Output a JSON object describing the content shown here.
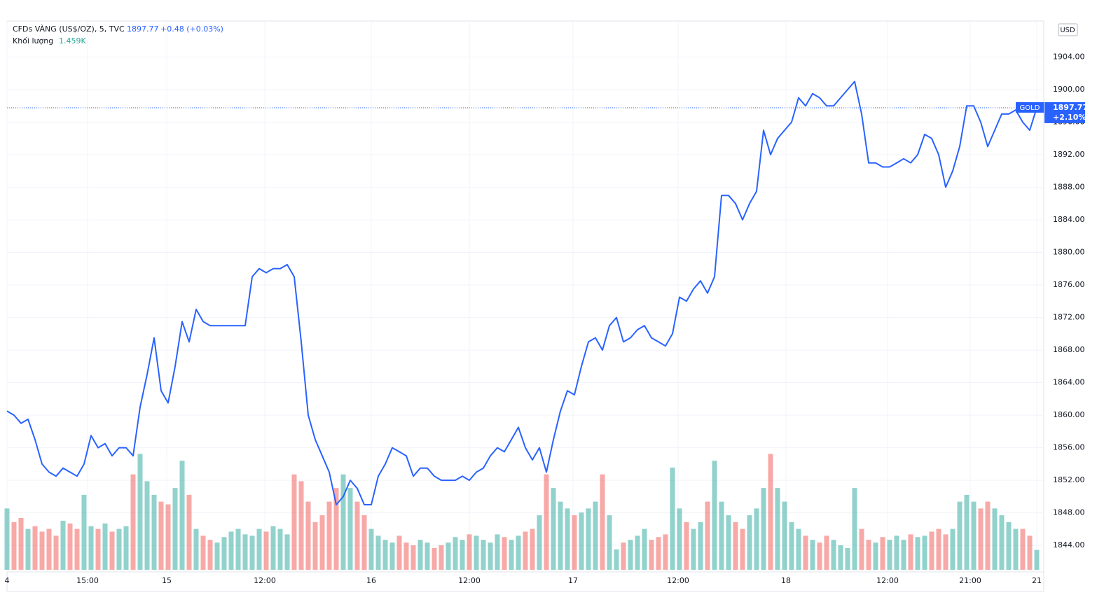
{
  "chart_data": {
    "type": "line",
    "x": [
      0,
      1,
      2,
      3,
      4,
      5,
      6,
      7,
      8,
      9,
      10,
      11,
      12,
      13,
      14,
      15,
      16,
      17,
      18,
      19,
      20,
      21,
      22,
      23,
      24,
      25,
      26,
      27,
      28,
      29,
      30,
      31,
      32,
      33,
      34,
      35,
      36,
      37,
      38,
      39,
      40,
      41,
      42,
      43,
      44,
      45,
      46,
      47,
      48,
      49,
      50,
      51,
      52,
      53,
      54,
      55,
      56,
      57,
      58,
      59,
      60,
      61,
      62,
      63,
      64,
      65,
      66,
      67,
      68,
      69,
      70,
      71,
      72,
      73,
      74,
      75,
      76,
      77,
      78,
      79,
      80,
      81,
      82,
      83,
      84,
      85,
      86,
      87,
      88,
      89,
      90,
      91,
      92,
      93,
      94,
      95,
      96,
      97,
      98,
      99,
      100,
      101,
      102,
      103,
      104,
      105,
      106,
      107,
      108,
      109,
      110,
      111,
      112,
      113,
      114,
      115,
      116,
      117,
      118,
      119,
      120,
      121,
      122,
      123,
      124,
      125,
      126,
      127,
      128,
      129,
      130,
      131,
      132,
      133,
      134,
      135,
      136,
      137,
      138,
      139,
      140,
      141,
      142,
      143,
      144,
      145,
      146,
      147
    ],
    "series": [
      {
        "name": "CFDs VÀNG (US$/OZ), 5, TVC",
        "last_label": "1897.77",
        "change_label": "+0.48 (+0.03%)",
        "color": "#2962ff",
        "values": [
          1860.5,
          1860,
          1859,
          1859.5,
          1857,
          1854,
          1853,
          1852.5,
          1853.5,
          1853,
          1852.5,
          1854,
          1857.5,
          1856,
          1856.5,
          1855,
          1856,
          1856,
          1855,
          1861,
          1865,
          1869.5,
          1863,
          1861.5,
          1866,
          1871.5,
          1869,
          1873,
          1871.5,
          1871,
          1871,
          1871,
          1871,
          1871,
          1871,
          1877,
          1878,
          1877.5,
          1878,
          1878,
          1878.5,
          1877,
          1869,
          1860,
          1857,
          1855,
          1853,
          1849,
          1850,
          1852,
          1851,
          1849,
          1849,
          1852.5,
          1854,
          1856,
          1855.5,
          1855,
          1852.5,
          1853.5,
          1853.5,
          1852.5,
          1852,
          1852,
          1852,
          1852.5,
          1852,
          1853,
          1853.5,
          1855,
          1856,
          1855.5,
          1857,
          1858.5,
          1856,
          1854.5,
          1856,
          1853,
          1857,
          1860.5,
          1863,
          1862.5,
          1866,
          1869,
          1869.5,
          1868,
          1871,
          1872,
          1869,
          1869.5,
          1870.5,
          1871,
          1869.5,
          1869,
          1868.5,
          1870,
          1874.5,
          1874,
          1875.5,
          1876.5,
          1875,
          1877,
          1887,
          1887,
          1886,
          1884,
          1886,
          1887.5,
          1895,
          1892,
          1894,
          1895,
          1896,
          1899,
          1898,
          1899.5,
          1899,
          1898,
          1898,
          1899,
          1900,
          1901,
          1897,
          1891,
          1891,
          1890.5,
          1890.5,
          1891,
          1891.5,
          1891,
          1892,
          1894.5,
          1894,
          1892,
          1888,
          1890,
          1893,
          1898,
          1898,
          1896,
          1893,
          1895,
          1897,
          1897,
          1897.5,
          1896,
          1895,
          1897.77
        ]
      },
      {
        "name": "Khối lượng",
        "last_label": "1.459K",
        "axis": "y2",
        "up_color": "#26a69a",
        "down_color": "#ef5350",
        "values": [
          4.5,
          3.5,
          3.8,
          3,
          3.2,
          2.8,
          3,
          2.5,
          3.6,
          3.4,
          3,
          5.5,
          3.2,
          3,
          3.4,
          2.8,
          3,
          3.2,
          7,
          8.5,
          6.5,
          5.5,
          5,
          4.8,
          6,
          8,
          5.5,
          3,
          2.5,
          2.2,
          2,
          2.4,
          2.8,
          3,
          2.6,
          2.5,
          3,
          2.8,
          3.2,
          3,
          2.6,
          7,
          6.5,
          5,
          3.5,
          4,
          5,
          6,
          7,
          6,
          5,
          4,
          3,
          2.5,
          2.2,
          2,
          2.5,
          2,
          1.8,
          2.2,
          2,
          1.6,
          1.8,
          2,
          2.4,
          2.2,
          2.6,
          2.5,
          2.2,
          2,
          2.6,
          2.4,
          2.2,
          2.5,
          2.8,
          3,
          4,
          7,
          6,
          5,
          4.5,
          4,
          4.2,
          4.5,
          5,
          7,
          4,
          1.5,
          2,
          2.2,
          2.5,
          3,
          2.2,
          2.4,
          2.6,
          7.5,
          4.5,
          3.5,
          3,
          3.5,
          5,
          8,
          5,
          4,
          3.5,
          3,
          4,
          4.5,
          6,
          8.5,
          6,
          5,
          3.5,
          3,
          2.5,
          2.2,
          2,
          2.5,
          2.2,
          1.8,
          1.6,
          6,
          3,
          2.2,
          2,
          2.4,
          2.2,
          2.5,
          2.2,
          2.6,
          2.4,
          2.5,
          2.8,
          3,
          2.6,
          3,
          5,
          5.5,
          5,
          4.5,
          5,
          4.5,
          4,
          3.5,
          3,
          3,
          2.5,
          1.459
        ]
      }
    ],
    "xlim": [
      0,
      147
    ],
    "xticks": [
      {
        "value": 0,
        "label": "4"
      },
      {
        "value": 11.5,
        "label": "15:00"
      },
      {
        "value": 22.8,
        "label": "15"
      },
      {
        "value": 36.8,
        "label": "12:00"
      },
      {
        "value": 52,
        "label": "16"
      },
      {
        "value": 66,
        "label": "12:00"
      },
      {
        "value": 80.8,
        "label": "17"
      },
      {
        "value": 95.8,
        "label": "12:00"
      },
      {
        "value": 111.2,
        "label": "18"
      },
      {
        "value": 125.7,
        "label": "12:00"
      },
      {
        "value": 137.5,
        "label": "21:00"
      },
      {
        "value": 147,
        "label": "21"
      }
    ],
    "ylim": [
      1841,
      1908
    ],
    "yticks": [
      {
        "value": 1844,
        "label": "1844.00"
      },
      {
        "value": 1848,
        "label": "1848.00"
      },
      {
        "value": 1852,
        "label": "1852.00"
      },
      {
        "value": 1856,
        "label": "1856.00"
      },
      {
        "value": 1860,
        "label": "1860.00"
      },
      {
        "value": 1864,
        "label": "1864.00"
      },
      {
        "value": 1868,
        "label": "1868.00"
      },
      {
        "value": 1872,
        "label": "1872.00"
      },
      {
        "value": 1876,
        "label": "1876.00"
      },
      {
        "value": 1880,
        "label": "1880.00"
      },
      {
        "value": 1884,
        "label": "1884.00"
      },
      {
        "value": 1888,
        "label": "1888.00"
      },
      {
        "value": 1892,
        "label": "1892.00"
      },
      {
        "value": 1896,
        "label": "1896.00"
      },
      {
        "value": 1900,
        "label": "1900.00"
      },
      {
        "value": 1904,
        "label": "1904.00"
      }
    ],
    "y2lim": [
      0,
      40
    ],
    "grid": true,
    "price_tag": {
      "symbol": "GOLD",
      "price": "1897.77",
      "change": "+2.10%"
    },
    "currency": "USD"
  }
}
